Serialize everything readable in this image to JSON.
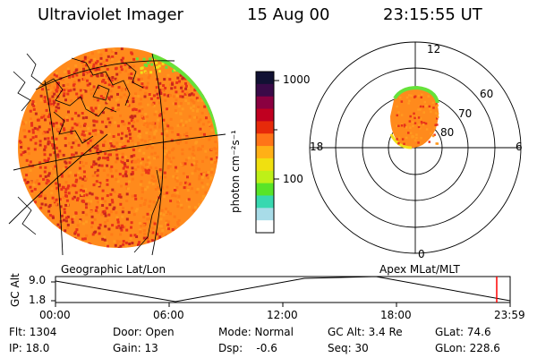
{
  "header": {
    "title": "Ultraviolet Imager",
    "date": "15 Aug 00",
    "time": "23:15:55 UT"
  },
  "colorbar": {
    "unit_label": "photon cm⁻²s⁻¹",
    "ticks": [
      "1000",
      "100"
    ],
    "colors": [
      "#111133",
      "#3a0a48",
      "#8a0040",
      "#c00020",
      "#e62a0a",
      "#ff7418",
      "#ffb016",
      "#f0e010",
      "#bef018",
      "#58e428",
      "#38d8b0",
      "#a8dce8",
      "#ffffff"
    ]
  },
  "left_panel": {
    "label": "Geographic Lat/Lon",
    "palette": [
      "#ff7a18",
      "#ff9a20",
      "#e8321a",
      "#c7261c",
      "#f0e01a",
      "#66e23a"
    ]
  },
  "right_panel": {
    "label": "Apex MLat/MLT",
    "mlt_labels": [
      "12",
      "18",
      "6",
      "0"
    ],
    "lat_labels": [
      "60",
      "70",
      "80"
    ]
  },
  "altitude_plot": {
    "ylabel": "GC Alt",
    "y_ticks": [
      "9.0",
      "1.8"
    ],
    "x_ticks": [
      "00:00",
      "06:00",
      "12:00",
      "18:00",
      "23:59"
    ],
    "marker_color": "#ff0000"
  },
  "footer": {
    "row1": [
      "Flt: 1304",
      "Door: Open",
      "Mode: Normal",
      "GC Alt: 3.4 Re",
      "GLat: 74.6"
    ],
    "row2": [
      "IP: 18.0",
      "Gain: 13",
      "Dsp:    -0.6",
      "Seq: 30",
      "GLon: 228.6"
    ]
  }
}
